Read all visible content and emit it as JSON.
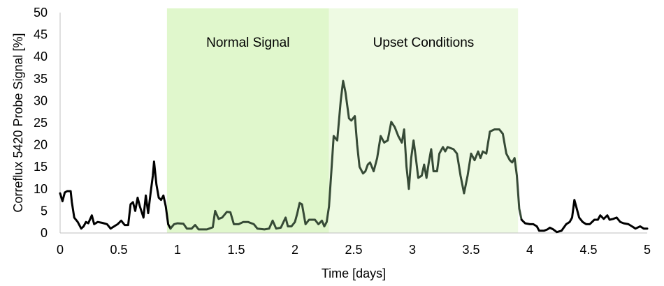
{
  "chart_data": {
    "type": "line",
    "xlabel": "Time [days]",
    "ylabel": "Correflux 5420 Probe Signal [%]",
    "xlim": [
      0,
      5
    ],
    "ylim": [
      0,
      50
    ],
    "x_ticks": [
      "0",
      "0.5",
      "1",
      "1.5",
      "2",
      "2.5",
      "3",
      "3.5",
      "4",
      "4.5",
      "5"
    ],
    "y_ticks": [
      "0",
      "5",
      "10",
      "15",
      "20",
      "25",
      "30",
      "35",
      "40",
      "45",
      "50"
    ],
    "grid": false,
    "regions": [
      {
        "label": "Normal Signal",
        "x_start": 0.91,
        "x_end": 2.29,
        "color": "#e0f7cc"
      },
      {
        "label": "Upset Conditions",
        "x_start": 2.29,
        "x_end": 3.9,
        "color": "#eefae3"
      }
    ],
    "series": [
      {
        "color": "#000000",
        "points": [
          [
            0,
            9
          ],
          [
            0.02,
            7.2
          ],
          [
            0.04,
            9.2
          ],
          [
            0.06,
            9.5
          ],
          [
            0.09,
            9.5
          ],
          [
            0.1,
            7
          ],
          [
            0.12,
            3.5
          ],
          [
            0.15,
            2.5
          ],
          [
            0.18,
            1
          ],
          [
            0.2,
            1.5
          ],
          [
            0.22,
            2.5
          ],
          [
            0.24,
            2.2
          ],
          [
            0.27,
            4
          ],
          [
            0.29,
            2
          ],
          [
            0.32,
            2.5
          ],
          [
            0.36,
            2.3
          ],
          [
            0.4,
            2
          ],
          [
            0.43,
            1
          ],
          [
            0.46,
            1.5
          ],
          [
            0.49,
            2
          ],
          [
            0.52,
            2.8
          ],
          [
            0.55,
            1.8
          ],
          [
            0.58,
            1.8
          ],
          [
            0.6,
            6.5
          ],
          [
            0.62,
            7
          ],
          [
            0.64,
            5
          ],
          [
            0.66,
            8
          ],
          [
            0.68,
            6
          ],
          [
            0.71,
            3.5
          ],
          [
            0.73,
            8.5
          ],
          [
            0.75,
            4.5
          ],
          [
            0.77,
            9
          ],
          [
            0.79,
            13
          ],
          [
            0.8,
            16.2
          ],
          [
            0.82,
            11
          ],
          [
            0.84,
            8
          ],
          [
            0.86,
            7.5
          ],
          [
            0.88,
            8.5
          ],
          [
            0.9,
            6
          ],
          [
            0.92,
            2
          ],
          [
            0.94,
            1
          ]
        ]
      },
      {
        "color": "#364a36",
        "points": [
          [
            0.94,
            1
          ],
          [
            0.97,
            2
          ],
          [
            1.0,
            2.2
          ],
          [
            1.05,
            2.1
          ],
          [
            1.08,
            1
          ],
          [
            1.12,
            1
          ],
          [
            1.15,
            1.8
          ],
          [
            1.18,
            0.8
          ],
          [
            1.25,
            0.8
          ],
          [
            1.3,
            1.3
          ],
          [
            1.32,
            5
          ],
          [
            1.35,
            3.2
          ],
          [
            1.38,
            3.5
          ],
          [
            1.42,
            4.8
          ],
          [
            1.45,
            4.7
          ],
          [
            1.48,
            2
          ],
          [
            1.52,
            2
          ],
          [
            1.56,
            2.5
          ],
          [
            1.6,
            2.5
          ],
          [
            1.65,
            2
          ],
          [
            1.68,
            1
          ],
          [
            1.74,
            0.8
          ],
          [
            1.78,
            1
          ],
          [
            1.81,
            2.8
          ],
          [
            1.84,
            1
          ],
          [
            1.88,
            1.2
          ],
          [
            1.92,
            3.5
          ],
          [
            1.94,
            1.5
          ],
          [
            1.97,
            1.5
          ],
          [
            2.0,
            2.5
          ],
          [
            2.02,
            4.5
          ],
          [
            2.04,
            6.8
          ],
          [
            2.06,
            6.5
          ],
          [
            2.09,
            2
          ],
          [
            2.12,
            3
          ],
          [
            2.17,
            3
          ],
          [
            2.2,
            2
          ],
          [
            2.23,
            2.8
          ],
          [
            2.25,
            1.5
          ],
          [
            2.27,
            2.5
          ],
          [
            2.29,
            6
          ],
          [
            2.31,
            14
          ],
          [
            2.33,
            22
          ],
          [
            2.36,
            21
          ],
          [
            2.39,
            30
          ],
          [
            2.41,
            34.5
          ],
          [
            2.43,
            32
          ],
          [
            2.46,
            26
          ],
          [
            2.48,
            25.5
          ],
          [
            2.51,
            26.5
          ],
          [
            2.53,
            20
          ],
          [
            2.55,
            15
          ],
          [
            2.58,
            13.5
          ],
          [
            2.6,
            14
          ],
          [
            2.62,
            15.5
          ],
          [
            2.64,
            16
          ],
          [
            2.67,
            14
          ],
          [
            2.7,
            17
          ],
          [
            2.73,
            22
          ],
          [
            2.76,
            20.5
          ],
          [
            2.79,
            21
          ],
          [
            2.82,
            25.2
          ],
          [
            2.85,
            24
          ],
          [
            2.88,
            22
          ],
          [
            2.91,
            20.5
          ],
          [
            2.93,
            23.5
          ],
          [
            2.95,
            15
          ],
          [
            2.97,
            10
          ],
          [
            2.99,
            17
          ],
          [
            3.01,
            21
          ],
          [
            3.03,
            17
          ],
          [
            3.05,
            12.5
          ],
          [
            3.08,
            13
          ],
          [
            3.1,
            15.5
          ],
          [
            3.12,
            12.5
          ],
          [
            3.14,
            16
          ],
          [
            3.16,
            19
          ],
          [
            3.18,
            14
          ],
          [
            3.21,
            14
          ],
          [
            3.23,
            18
          ],
          [
            3.26,
            19.5
          ],
          [
            3.28,
            18.5
          ],
          [
            3.3,
            19.5
          ],
          [
            3.35,
            19
          ],
          [
            3.38,
            18
          ],
          [
            3.41,
            13
          ],
          [
            3.44,
            9
          ],
          [
            3.47,
            13
          ],
          [
            3.5,
            18
          ],
          [
            3.53,
            16.5
          ],
          [
            3.56,
            18.5
          ],
          [
            3.58,
            17
          ],
          [
            3.6,
            18.5
          ],
          [
            3.63,
            18
          ],
          [
            3.66,
            23
          ],
          [
            3.7,
            23.5
          ],
          [
            3.74,
            23.5
          ],
          [
            3.77,
            22.5
          ],
          [
            3.8,
            18
          ],
          [
            3.83,
            16.5
          ],
          [
            3.85,
            16
          ],
          [
            3.87,
            17
          ],
          [
            3.89,
            13
          ],
          [
            3.91,
            5.5
          ],
          [
            3.93,
            3
          ]
        ]
      },
      {
        "color": "#000000",
        "points": [
          [
            3.93,
            3
          ],
          [
            3.96,
            2.2
          ],
          [
            4.0,
            2
          ],
          [
            4.03,
            2
          ],
          [
            4.06,
            1.5
          ],
          [
            4.08,
            0.5
          ],
          [
            4.12,
            0.5
          ],
          [
            4.15,
            0.8
          ],
          [
            4.17,
            1.2
          ],
          [
            4.2,
            0.8
          ],
          [
            4.23,
            0.2
          ],
          [
            4.27,
            0.5
          ],
          [
            4.31,
            2
          ],
          [
            4.34,
            2.5
          ],
          [
            4.36,
            3.5
          ],
          [
            4.38,
            7.5
          ],
          [
            4.4,
            5.5
          ],
          [
            4.42,
            3.5
          ],
          [
            4.45,
            2.5
          ],
          [
            4.48,
            2
          ],
          [
            4.51,
            2
          ],
          [
            4.55,
            3
          ],
          [
            4.58,
            3
          ],
          [
            4.6,
            4
          ],
          [
            4.63,
            3.2
          ],
          [
            4.66,
            4
          ],
          [
            4.68,
            3
          ],
          [
            4.71,
            3.2
          ],
          [
            4.74,
            3.5
          ],
          [
            4.77,
            2.5
          ],
          [
            4.8,
            2.2
          ],
          [
            4.84,
            2
          ],
          [
            4.87,
            1.5
          ],
          [
            4.9,
            1
          ],
          [
            4.94,
            1.5
          ],
          [
            4.97,
            1
          ],
          [
            5.0,
            1
          ]
        ]
      }
    ]
  }
}
